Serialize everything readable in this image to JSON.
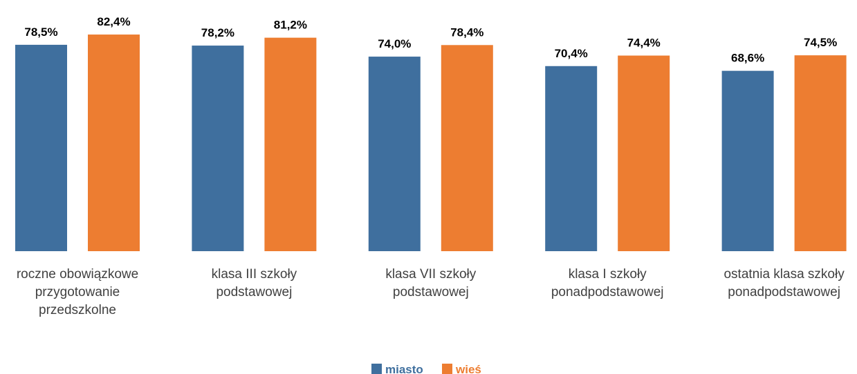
{
  "chart_data": {
    "type": "bar",
    "categories": [
      [
        "roczne obowiązkowe",
        "przygotowanie",
        "przedszkolne"
      ],
      [
        "klasa III szkoły",
        "podstawowej"
      ],
      [
        "klasa VII szkoły",
        "podstawowej"
      ],
      [
        "klasa I szkoły",
        "ponadpodstawowej"
      ],
      [
        "ostatnia klasa szkoły",
        "ponadpodstawowej"
      ]
    ],
    "series": [
      {
        "name": "miasto",
        "color": "#3F6F9E",
        "values": [
          78.5,
          78.2,
          74.0,
          70.4,
          68.6
        ],
        "labels": [
          "78,5%",
          "78,2%",
          "74,0%",
          "70,4%",
          "68,6%"
        ]
      },
      {
        "name": "wieś",
        "color": "#ED7D31",
        "values": [
          82.4,
          81.2,
          78.4,
          74.4,
          74.5
        ],
        "labels": [
          "82,4%",
          "81,2%",
          "78,4%",
          "74,4%",
          "74,5%"
        ]
      }
    ],
    "ylim": [
      0,
      100
    ],
    "grid": false,
    "legend_position": "bottom"
  }
}
